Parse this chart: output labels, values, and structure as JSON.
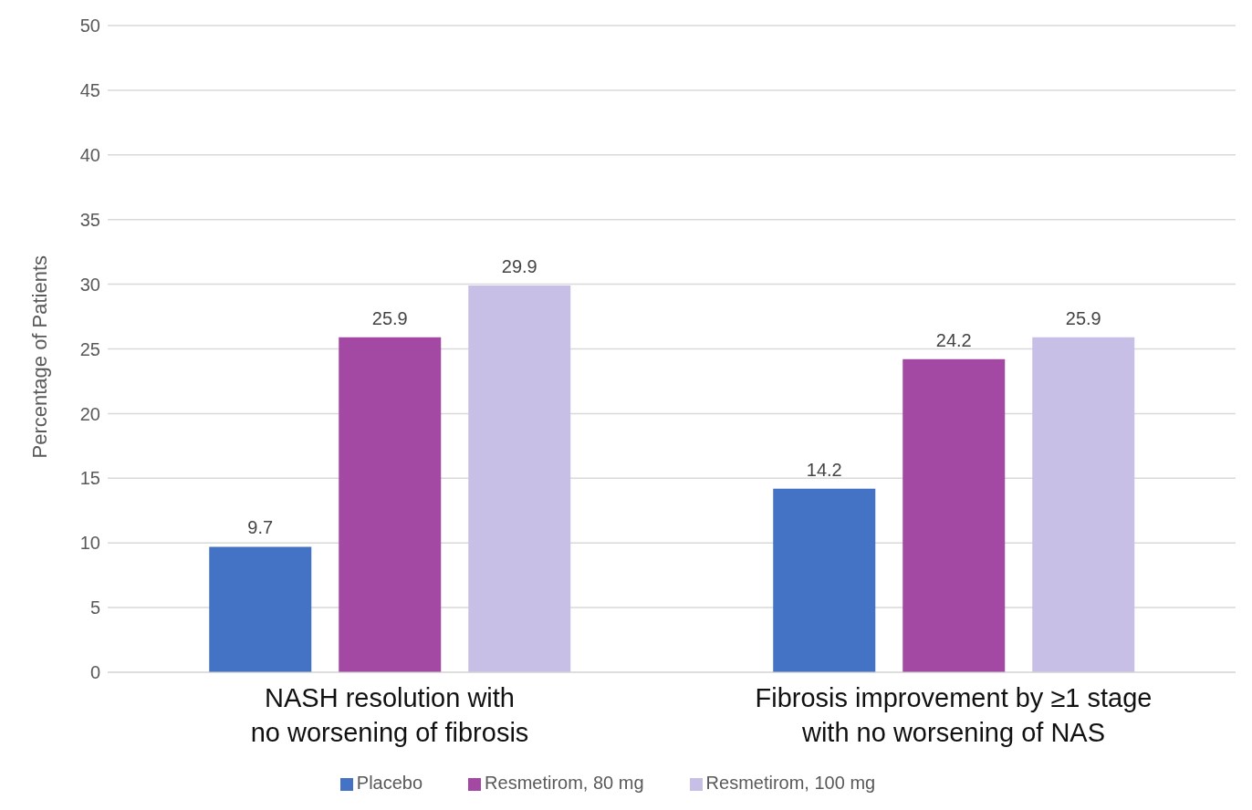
{
  "chart_data": {
    "type": "bar",
    "ylabel": "Percentage of Patients",
    "categories": [
      "NASH resolution with\nno worsening of fibrosis",
      "Fibrosis improvement by ≥1 stage\nwith no worsening of NAS"
    ],
    "series": [
      {
        "name": "Placebo",
        "color": "#4472c4",
        "values": [
          9.7,
          14.2
        ]
      },
      {
        "name": "Resmetirom, 80 mg",
        "color": "#a349a4",
        "values": [
          25.9,
          24.2
        ]
      },
      {
        "name": "Resmetirom, 100 mg",
        "color": "#c8bfe7",
        "values": [
          29.9,
          25.9
        ]
      }
    ],
    "ylim": [
      0,
      50
    ],
    "yticks": [
      0,
      5,
      10,
      15,
      20,
      25,
      30,
      35,
      40,
      45,
      50
    ],
    "grid": "y",
    "legend": "bottom",
    "data_labels": true
  }
}
